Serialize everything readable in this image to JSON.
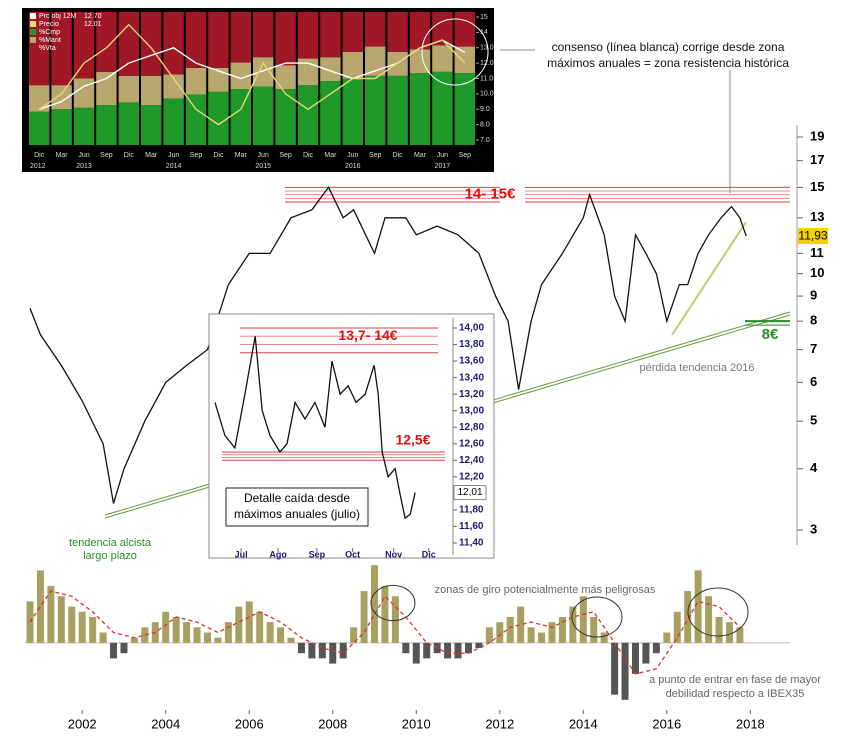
{
  "chart_data": [
    {
      "type": "line",
      "x": [
        2000.75,
        2001,
        2001.5,
        2002,
        2002.5,
        2002.75,
        2003,
        2003.5,
        2004,
        2004.5,
        2005,
        2005.5,
        2006,
        2006.5,
        2007,
        2007.5,
        2007.9,
        2008.25,
        2008.5,
        2009,
        2009.25,
        2009.75,
        2010,
        2010.5,
        2011,
        2011.5,
        2011.9,
        2012.2,
        2012.45,
        2012.75,
        2013,
        2013.5,
        2014,
        2014.15,
        2014.5,
        2014.75,
        2015,
        2015.25,
        2015.5,
        2015.75,
        2016,
        2016.3,
        2016.5,
        2016.75,
        2017,
        2017.3,
        2017.55,
        2017.75,
        2017.9
      ],
      "values": [
        8.5,
        7.5,
        6.5,
        5.5,
        4.5,
        3.4,
        4.0,
        5.0,
        6.0,
        6.5,
        7.0,
        9.5,
        11,
        11,
        13,
        13.5,
        15,
        13,
        13.5,
        11,
        13,
        13,
        12,
        12.5,
        12,
        11,
        9,
        8,
        5.8,
        8,
        9.5,
        11,
        13,
        14.5,
        12,
        9,
        8,
        12,
        11,
        10,
        8,
        9.5,
        9.5,
        11,
        12,
        13,
        13.7,
        13,
        11.93
      ],
      "color": "#111111",
      "xlim": [
        2000.63,
        2018.95
      ],
      "xticks": [
        2002,
        2004,
        2006,
        2008,
        2010,
        2012,
        2014,
        2016,
        2018
      ],
      "ylim": [
        3,
        19
      ],
      "yticks": [
        3,
        4,
        5,
        6,
        7,
        8,
        9,
        10,
        11,
        13,
        15,
        17,
        19
      ],
      "log_scale": true,
      "resistance": {
        "label": "14- 15€",
        "low": 14,
        "high": 15
      },
      "support": {
        "label": "8€",
        "value": 8
      },
      "last": {
        "value": 11.93,
        "label": "11,93"
      }
    },
    {
      "type": "line",
      "x": [
        -0.22,
        0.05,
        0.32,
        0.59,
        0.87,
        1.06,
        1.27,
        1.54,
        1.73,
        1.95,
        2.22,
        2.49,
        2.76,
        2.95,
        3.17,
        3.39,
        3.6,
        3.85,
        4.09,
        4.2,
        4.31,
        4.47,
        4.66,
        4.79,
        4.93,
        5.07,
        5.2
      ],
      "values": [
        13.1,
        12.7,
        12.55,
        13.2,
        13.9,
        13.0,
        12.7,
        12.5,
        12.6,
        13.1,
        12.9,
        13.1,
        12.8,
        13.6,
        13.2,
        13.3,
        13.1,
        13.2,
        13.55,
        13.2,
        12.5,
        12.2,
        12.3,
        12.0,
        11.7,
        11.75,
        12.01
      ],
      "color": "#111111",
      "xlim": [
        -0.3,
        6.2
      ],
      "xticks": [
        {
          "value": 0.49,
          "label": "Jul"
        },
        {
          "value": 1.49,
          "label": "Ago"
        },
        {
          "value": 2.54,
          "label": "Sep"
        },
        {
          "value": 3.51,
          "label": "Oct"
        },
        {
          "value": 4.62,
          "label": "Nov"
        },
        {
          "value": 5.57,
          "label": "Dic"
        }
      ],
      "ylim": [
        11.4,
        14.0
      ],
      "yticks": [
        {
          "value": 11.4,
          "label": "11,40"
        },
        {
          "value": 11.6,
          "label": "11,60"
        },
        {
          "value": 11.8,
          "label": "11,80"
        },
        {
          "value": 12.0,
          "label": "12,00"
        },
        {
          "value": 12.2,
          "label": "12,20"
        },
        {
          "value": 12.4,
          "label": "12,40"
        },
        {
          "value": 12.6,
          "label": "12,60"
        },
        {
          "value": 12.8,
          "label": "12,80"
        },
        {
          "value": 13.0,
          "label": "13,00"
        },
        {
          "value": 13.2,
          "label": "13,20"
        },
        {
          "value": 13.4,
          "label": "13,40"
        },
        {
          "value": 13.6,
          "label": "13,60"
        },
        {
          "value": 13.8,
          "label": "13,80"
        },
        {
          "value": 14.0,
          "label": "14,00"
        }
      ],
      "resistance": [
        {
          "label": "13,7- 14€",
          "low": 13.7,
          "high": 14.0
        },
        {
          "label": "12,5€",
          "low": 12.4,
          "high": 12.5
        }
      ],
      "note": [
        "Detalle caída desde",
        "máximos anuales (julio)"
      ],
      "last": {
        "value": 12.01,
        "label": "12,01"
      }
    },
    {
      "type": "bar",
      "stacked": true,
      "categories": [
        "Dic",
        "Mar",
        "Jun",
        "Sep",
        "Dic",
        "Mar",
        "Jun",
        "Sep",
        "Dic",
        "Mar",
        "Jun",
        "Sep",
        "Dic",
        "Mar",
        "Jun",
        "Sep",
        "Dic",
        "Mar",
        "Jun",
        "Sep"
      ],
      "years": [
        "2012",
        "2013",
        "2014",
        "2015",
        "2016",
        "2017"
      ],
      "ylim": [
        0,
        100
      ],
      "y2lim": [
        7,
        15
      ],
      "y2ticks": [
        {
          "value": 7,
          "label": "7.0"
        },
        {
          "value": 8,
          "label": "8.0"
        },
        {
          "value": 9,
          "label": "9.0"
        },
        {
          "value": 10,
          "label": "10.0"
        },
        {
          "value": 11,
          "label": "11.0"
        },
        {
          "value": 12,
          "label": "12.0"
        },
        {
          "value": 13,
          "label": "13.0"
        },
        14,
        15
      ],
      "series": [
        {
          "name": "Prc obj 12M",
          "color": "#ffffff",
          "axis": "y2",
          "values": [
            9,
            9.5,
            10.5,
            11,
            12,
            12.5,
            13,
            12,
            11.5,
            11,
            11.5,
            12,
            12,
            11.5,
            11,
            11.5,
            12,
            13,
            13.5,
            12.7
          ],
          "last": {
            "value": 12.7,
            "label": "12.70"
          }
        },
        {
          "name": "Precio",
          "color": "#e8d870",
          "axis": "y2",
          "values": [
            9,
            10,
            12,
            13,
            14.5,
            13,
            11,
            9,
            8,
            9,
            12,
            10,
            9,
            10,
            11,
            11,
            12,
            13,
            13.5,
            12.01
          ],
          "last": 12.01
        },
        {
          "name": "%Cmp",
          "color": "#1f9a2a",
          "values": [
            25,
            27,
            28,
            30,
            32,
            30,
            35,
            38,
            40,
            42,
            44,
            42,
            45,
            48,
            50,
            52,
            52,
            54,
            55,
            54
          ]
        },
        {
          "name": "%Mant",
          "color": "#b8a870",
          "values": [
            20,
            18,
            22,
            25,
            20,
            22,
            18,
            20,
            18,
            20,
            22,
            18,
            20,
            18,
            20,
            22,
            18,
            18,
            20,
            20
          ]
        },
        {
          "name": "%Vta",
          "color": "#a01828",
          "values": [
            55,
            55,
            50,
            45,
            48,
            48,
            47,
            42,
            42,
            38,
            34,
            40,
            35,
            34,
            30,
            26,
            30,
            28,
            25,
            26
          ]
        }
      ]
    },
    {
      "type": "bar",
      "x": [
        2000.75,
        2001,
        2001.25,
        2001.5,
        2001.75,
        2002,
        2002.25,
        2002.5,
        2002.75,
        2003,
        2003.25,
        2003.5,
        2003.75,
        2004,
        2004.25,
        2004.5,
        2004.75,
        2005,
        2005.25,
        2005.5,
        2005.75,
        2006,
        2006.25,
        2006.5,
        2006.75,
        2007,
        2007.25,
        2007.5,
        2007.75,
        2008,
        2008.25,
        2008.5,
        2008.75,
        2009,
        2009.25,
        2009.5,
        2009.75,
        2010,
        2010.25,
        2010.5,
        2010.75,
        2011,
        2011.25,
        2011.5,
        2011.75,
        2012,
        2012.25,
        2012.5,
        2012.75,
        2013,
        2013.25,
        2013.5,
        2013.75,
        2014,
        2014.25,
        2014.5,
        2014.75,
        2015,
        2015.25,
        2015.5,
        2015.75,
        2016,
        2016.25,
        2016.5,
        2016.75,
        2017,
        2017.25,
        2017.5,
        2017.75
      ],
      "values": [
        40,
        70,
        55,
        45,
        35,
        30,
        25,
        10,
        -15,
        -10,
        5,
        15,
        20,
        30,
        25,
        20,
        15,
        10,
        5,
        20,
        35,
        40,
        30,
        20,
        15,
        5,
        -10,
        -15,
        -15,
        -20,
        -15,
        15,
        50,
        75,
        55,
        45,
        -10,
        -20,
        -15,
        -10,
        -15,
        -15,
        -10,
        -5,
        15,
        20,
        25,
        35,
        15,
        10,
        20,
        25,
        35,
        45,
        25,
        10,
        -50,
        -55,
        -30,
        -20,
        -10,
        10,
        30,
        50,
        70,
        45,
        25,
        20,
        15
      ],
      "xlim": [
        2000.63,
        2018.95
      ],
      "ylim": [
        -60,
        80
      ],
      "color": "#a8a060",
      "negative_color": "#555555",
      "signal": {
        "color": "#e03030",
        "x": [
          2000.75,
          2001.25,
          2001.75,
          2002.25,
          2002.75,
          2003.25,
          2003.75,
          2004.25,
          2004.75,
          2005.25,
          2005.75,
          2006.25,
          2006.75,
          2007.25,
          2007.75,
          2008.25,
          2008.75,
          2009.25,
          2009.75,
          2010.25,
          2010.75,
          2011.25,
          2011.75,
          2012.25,
          2012.75,
          2013.25,
          2013.75,
          2014.25,
          2014.75,
          2015.25,
          2015.75,
          2016.25,
          2016.75,
          2017.25,
          2017.75
        ],
        "values": [
          20,
          50,
          45,
          30,
          10,
          5,
          10,
          25,
          20,
          10,
          20,
          30,
          20,
          5,
          -5,
          -10,
          10,
          45,
          25,
          0,
          -10,
          -10,
          0,
          15,
          20,
          15,
          25,
          30,
          0,
          -30,
          -25,
          5,
          40,
          35,
          15
        ]
      }
    }
  ],
  "annotations": [
    "consenso (línea blanca) corrige desde zona",
    "máximos anuales = zona resistencia histórica",
    "pérdida tendencia 2016",
    "tendencia alcista",
    "largo plazo",
    "zonas de giro potencialmente más peligrosas",
    "a punto de entrar en fase de mayor",
    "debilidad respecto a IBEX35"
  ]
}
